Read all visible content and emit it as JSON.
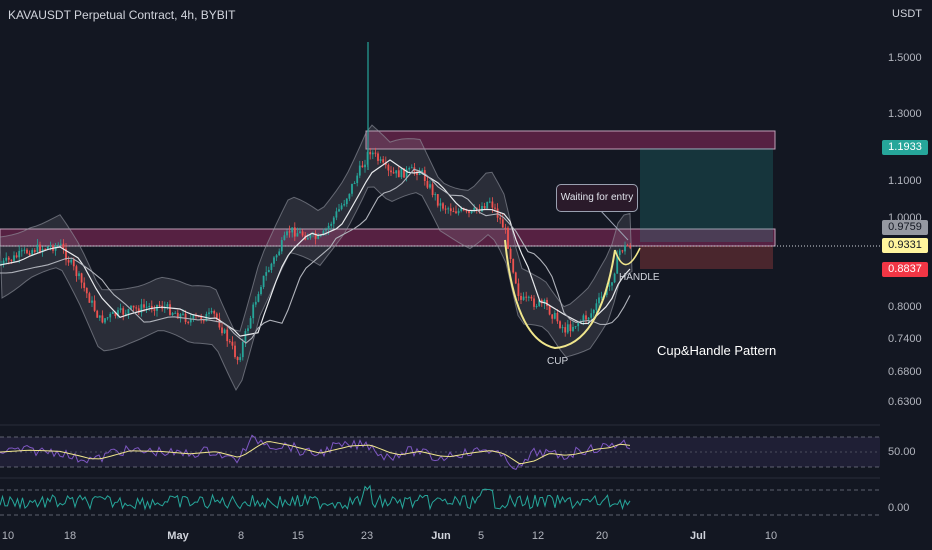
{
  "header": {
    "title": "KAVAUSDT Perpetual Contract, 4h, BYBIT",
    "currency": "USDT"
  },
  "price_axis": [
    "1.5000",
    "1.3000",
    "1.1000",
    "1.0000",
    "0.8000",
    "0.7400",
    "0.6800",
    "0.6300"
  ],
  "price_tags": {
    "target": "1.1933",
    "entry_top": "0.9759",
    "last": "0.9331",
    "stop": "0.8837"
  },
  "indicator_axis": {
    "rsi_level": "50.00",
    "osc_level": "0.00"
  },
  "time_axis": [
    {
      "label": "10",
      "bold": false
    },
    {
      "label": "18",
      "bold": false
    },
    {
      "label": "May",
      "bold": true
    },
    {
      "label": "8",
      "bold": false
    },
    {
      "label": "15",
      "bold": false
    },
    {
      "label": "23",
      "bold": false
    },
    {
      "label": "Jun",
      "bold": true
    },
    {
      "label": "5",
      "bold": false
    },
    {
      "label": "12",
      "bold": false
    },
    {
      "label": "20",
      "bold": false
    },
    {
      "label": "Jul",
      "bold": true
    },
    {
      "label": "10",
      "bold": false
    }
  ],
  "annotations": {
    "waiting": "Waiting for entry",
    "handle": "HANDLE",
    "cup": "CUP",
    "pattern": "Cup&Handle Pattern"
  },
  "colors": {
    "background": "#131722",
    "up": "#26a69a",
    "down": "#ef5350",
    "zone": "#8e2a5c",
    "target_tag": "#26a69a",
    "stop_tag": "#f23645",
    "rsi": "#7e57c2",
    "osc": "#26a69a",
    "cup_line": "#f0e68c"
  }
}
